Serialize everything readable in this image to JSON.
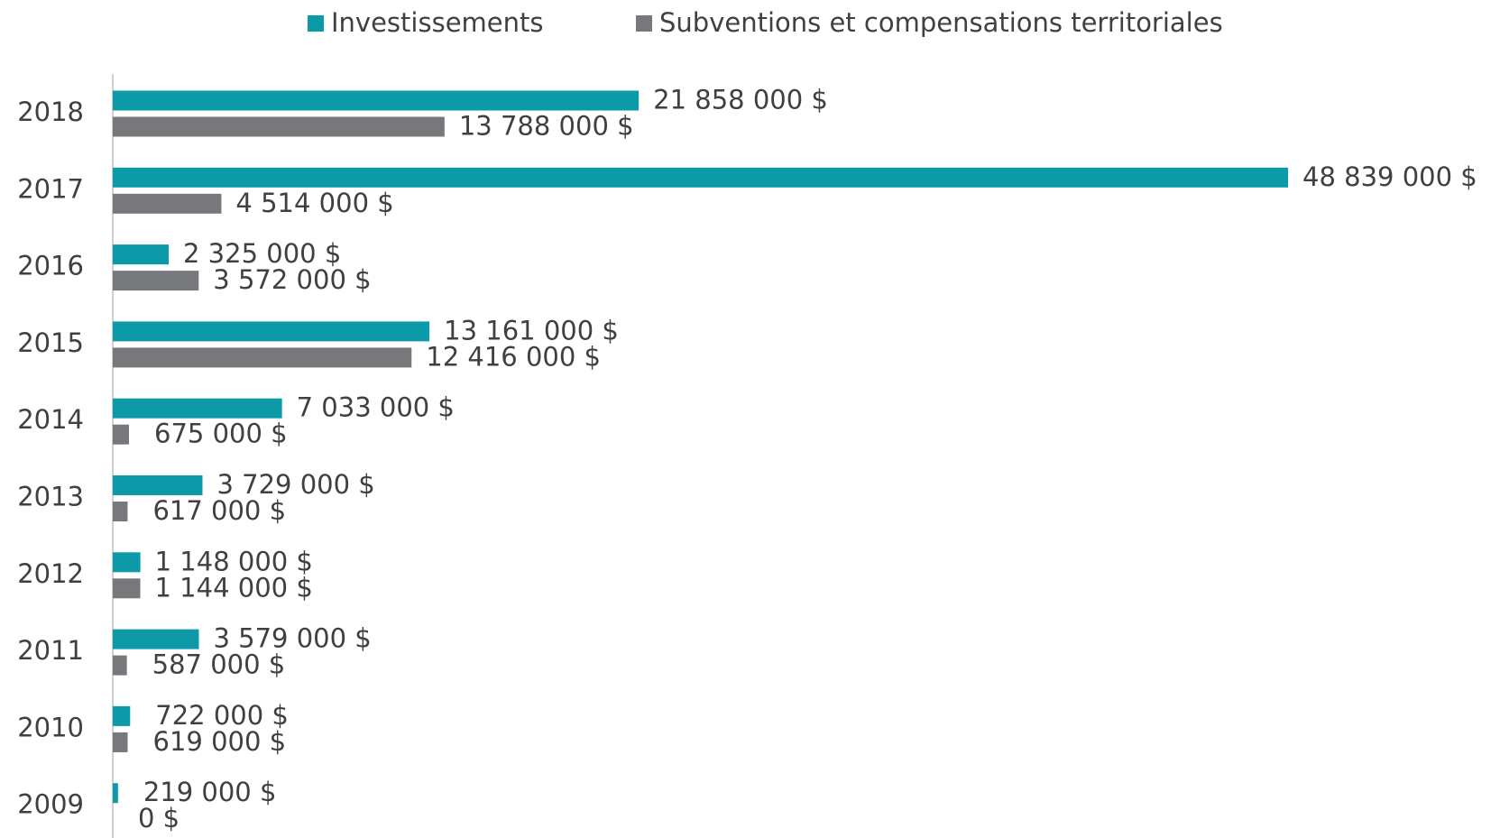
{
  "chart_data": {
    "type": "bar",
    "orientation": "horizontal",
    "categories": [
      "2018",
      "2017",
      "2016",
      "2015",
      "2014",
      "2013",
      "2012",
      "2011",
      "2010",
      "2009"
    ],
    "series": [
      {
        "name": "Investissements",
        "color": "#0d9aa8",
        "values": [
          21858000,
          48839000,
          2325000,
          13161000,
          7033000,
          3729000,
          1148000,
          3579000,
          722000,
          219000
        ],
        "value_labels": [
          "21 858 000 $",
          "48 839 000 $",
          "2 325 000 $",
          "13 161 000 $",
          "7 033 000 $",
          "3 729 000 $",
          "1 148 000 $",
          "3 579 000 $",
          "722 000 $",
          "219 000 $"
        ]
      },
      {
        "name": "Subventions et compensations territoriales",
        "color": "#76787b",
        "values": [
          13788000,
          4514000,
          3572000,
          12416000,
          675000,
          617000,
          1144000,
          587000,
          619000,
          0
        ],
        "value_labels": [
          "13 788 000 $",
          "4 514 000 $",
          "3 572 000 $",
          "12 416 000 $",
          "675 000 $",
          "617 000 $",
          "1 144 000 $",
          "587 000 $",
          "619 000 $",
          "0 $"
        ]
      }
    ],
    "xlim": [
      0,
      50000000
    ],
    "legend": "top"
  }
}
